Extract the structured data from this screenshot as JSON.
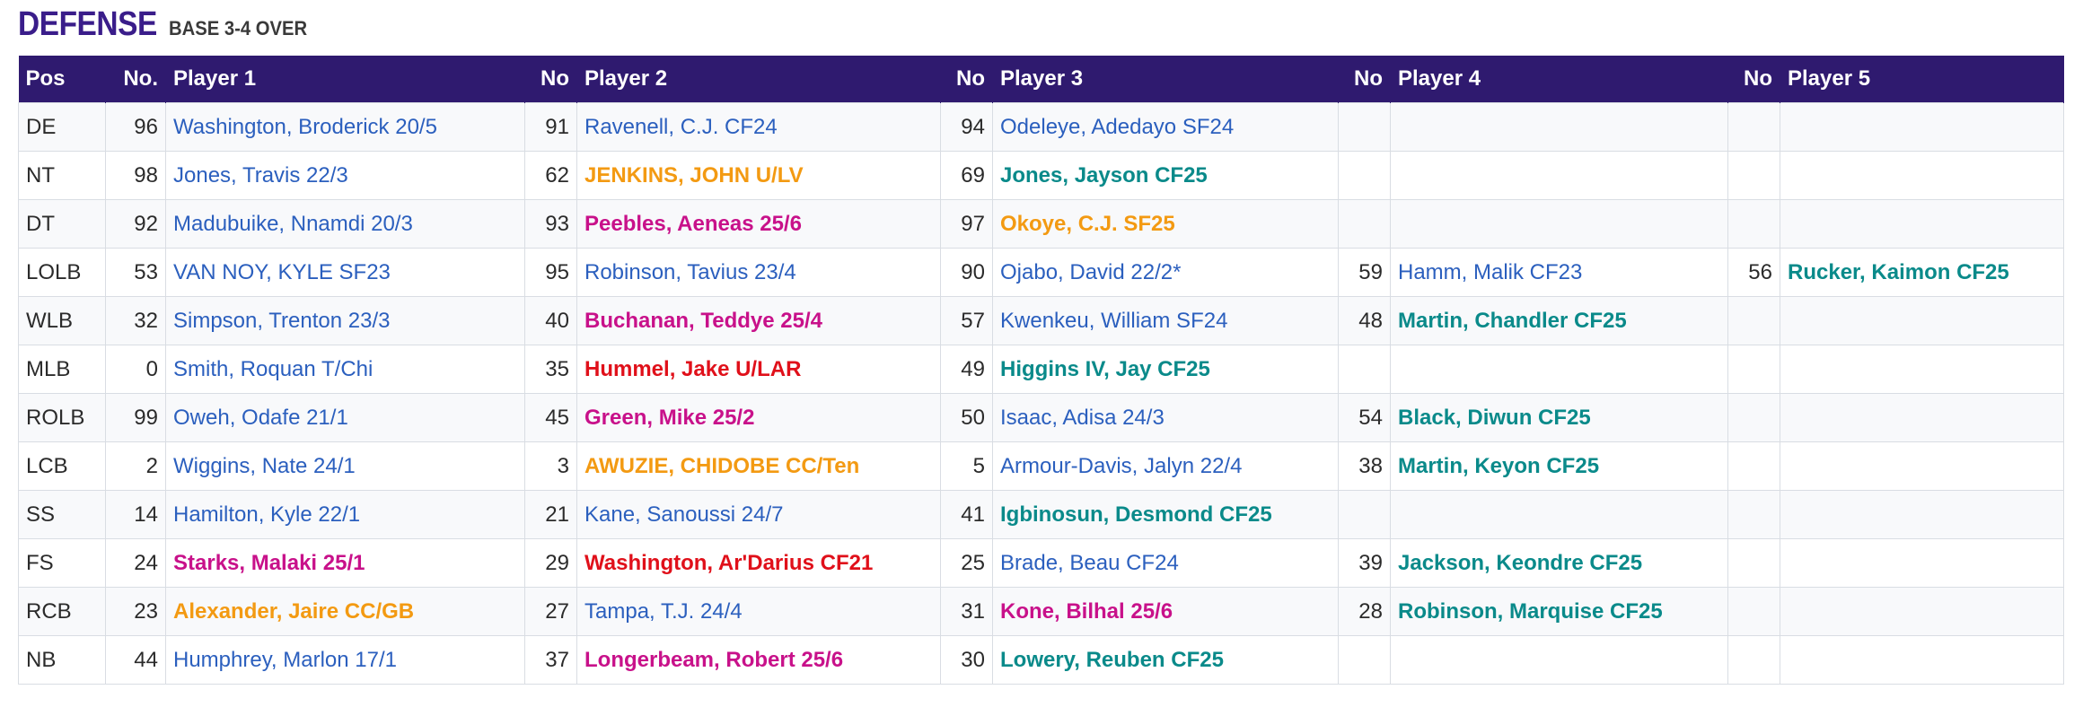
{
  "heading": {
    "title": "DEFENSE",
    "subtitle": "BASE 3-4 OVER"
  },
  "colors": {
    "header_bg": "#2f1a6f",
    "link_blue": "#2b5fbe",
    "teal": "#0a8a8a",
    "orange": "#f39a12",
    "magenta": "#c8118a",
    "red": "#e0101a"
  },
  "columns": [
    "Pos",
    "No.",
    "Player 1",
    "No",
    "Player 2",
    "No",
    "Player 3",
    "No",
    "Player 4",
    "No",
    "Player 5"
  ],
  "rows": [
    {
      "pos": "DE",
      "players": [
        {
          "no": "96",
          "name": "Washington, Broderick 20/5",
          "style": "blue"
        },
        {
          "no": "91",
          "name": "Ravenell, C.J. CF24",
          "style": "blue"
        },
        {
          "no": "94",
          "name": "Odeleye, Adedayo SF24",
          "style": "blue"
        },
        {
          "no": "",
          "name": "",
          "style": "blue"
        },
        {
          "no": "",
          "name": "",
          "style": "blue"
        }
      ]
    },
    {
      "pos": "NT",
      "players": [
        {
          "no": "98",
          "name": "Jones, Travis 22/3",
          "style": "blue"
        },
        {
          "no": "62",
          "name": "JENKINS, JOHN U/LV",
          "style": "orange"
        },
        {
          "no": "69",
          "name": "Jones, Jayson CF25",
          "style": "teal"
        },
        {
          "no": "",
          "name": "",
          "style": "blue"
        },
        {
          "no": "",
          "name": "",
          "style": "blue"
        }
      ]
    },
    {
      "pos": "DT",
      "players": [
        {
          "no": "92",
          "name": "Madubuike, Nnamdi 20/3",
          "style": "blue"
        },
        {
          "no": "93",
          "name": "Peebles, Aeneas 25/6",
          "style": "magenta"
        },
        {
          "no": "97",
          "name": "Okoye, C.J. SF25",
          "style": "orange"
        },
        {
          "no": "",
          "name": "",
          "style": "blue"
        },
        {
          "no": "",
          "name": "",
          "style": "blue"
        }
      ]
    },
    {
      "pos": "LOLB",
      "players": [
        {
          "no": "53",
          "name": "VAN NOY, KYLE SF23",
          "style": "blue"
        },
        {
          "no": "95",
          "name": "Robinson, Tavius 23/4",
          "style": "blue"
        },
        {
          "no": "90",
          "name": "Ojabo, David 22/2*",
          "style": "blue"
        },
        {
          "no": "59",
          "name": "Hamm, Malik CF23",
          "style": "blue"
        },
        {
          "no": "56",
          "name": "Rucker, Kaimon CF25",
          "style": "teal"
        }
      ]
    },
    {
      "pos": "WLB",
      "players": [
        {
          "no": "32",
          "name": "Simpson, Trenton 23/3",
          "style": "blue"
        },
        {
          "no": "40",
          "name": "Buchanan, Teddye 25/4",
          "style": "magenta"
        },
        {
          "no": "57",
          "name": "Kwenkeu, William SF24",
          "style": "blue"
        },
        {
          "no": "48",
          "name": "Martin, Chandler CF25",
          "style": "teal"
        },
        {
          "no": "",
          "name": "",
          "style": "blue"
        }
      ]
    },
    {
      "pos": "MLB",
      "players": [
        {
          "no": "0",
          "name": "Smith, Roquan T/Chi",
          "style": "blue"
        },
        {
          "no": "35",
          "name": "Hummel, Jake U/LAR",
          "style": "red"
        },
        {
          "no": "49",
          "name": "Higgins IV, Jay CF25",
          "style": "teal"
        },
        {
          "no": "",
          "name": "",
          "style": "blue"
        },
        {
          "no": "",
          "name": "",
          "style": "blue"
        }
      ]
    },
    {
      "pos": "ROLB",
      "players": [
        {
          "no": "99",
          "name": "Oweh, Odafe 21/1",
          "style": "blue"
        },
        {
          "no": "45",
          "name": "Green, Mike 25/2",
          "style": "magenta"
        },
        {
          "no": "50",
          "name": "Isaac, Adisa 24/3",
          "style": "blue"
        },
        {
          "no": "54",
          "name": "Black, Diwun CF25",
          "style": "teal"
        },
        {
          "no": "",
          "name": "",
          "style": "blue"
        }
      ]
    },
    {
      "pos": "LCB",
      "players": [
        {
          "no": "2",
          "name": "Wiggins, Nate 24/1",
          "style": "blue"
        },
        {
          "no": "3",
          "name": "AWUZIE, CHIDOBE CC/Ten",
          "style": "orange"
        },
        {
          "no": "5",
          "name": "Armour-Davis, Jalyn 22/4",
          "style": "blue"
        },
        {
          "no": "38",
          "name": "Martin, Keyon CF25",
          "style": "teal"
        },
        {
          "no": "",
          "name": "",
          "style": "blue"
        }
      ]
    },
    {
      "pos": "SS",
      "players": [
        {
          "no": "14",
          "name": "Hamilton, Kyle 22/1",
          "style": "blue"
        },
        {
          "no": "21",
          "name": "Kane, Sanoussi 24/7",
          "style": "blue"
        },
        {
          "no": "41",
          "name": "Igbinosun, Desmond CF25",
          "style": "teal"
        },
        {
          "no": "",
          "name": "",
          "style": "blue"
        },
        {
          "no": "",
          "name": "",
          "style": "blue"
        }
      ]
    },
    {
      "pos": "FS",
      "players": [
        {
          "no": "24",
          "name": "Starks, Malaki 25/1",
          "style": "magenta"
        },
        {
          "no": "29",
          "name": "Washington, Ar'Darius CF21",
          "style": "red"
        },
        {
          "no": "25",
          "name": "Brade, Beau CF24",
          "style": "blue"
        },
        {
          "no": "39",
          "name": "Jackson, Keondre CF25",
          "style": "teal"
        },
        {
          "no": "",
          "name": "",
          "style": "blue"
        }
      ]
    },
    {
      "pos": "RCB",
      "players": [
        {
          "no": "23",
          "name": "Alexander, Jaire CC/GB",
          "style": "orange"
        },
        {
          "no": "27",
          "name": "Tampa, T.J. 24/4",
          "style": "blue"
        },
        {
          "no": "31",
          "name": "Kone, Bilhal 25/6",
          "style": "magenta"
        },
        {
          "no": "28",
          "name": "Robinson, Marquise CF25",
          "style": "teal"
        },
        {
          "no": "",
          "name": "",
          "style": "blue"
        }
      ]
    },
    {
      "pos": "NB",
      "players": [
        {
          "no": "44",
          "name": "Humphrey, Marlon 17/1",
          "style": "blue"
        },
        {
          "no": "37",
          "name": "Longerbeam, Robert 25/6",
          "style": "magenta"
        },
        {
          "no": "30",
          "name": "Lowery, Reuben CF25",
          "style": "teal"
        },
        {
          "no": "",
          "name": "",
          "style": "blue"
        },
        {
          "no": "",
          "name": "",
          "style": "blue"
        }
      ]
    }
  ]
}
